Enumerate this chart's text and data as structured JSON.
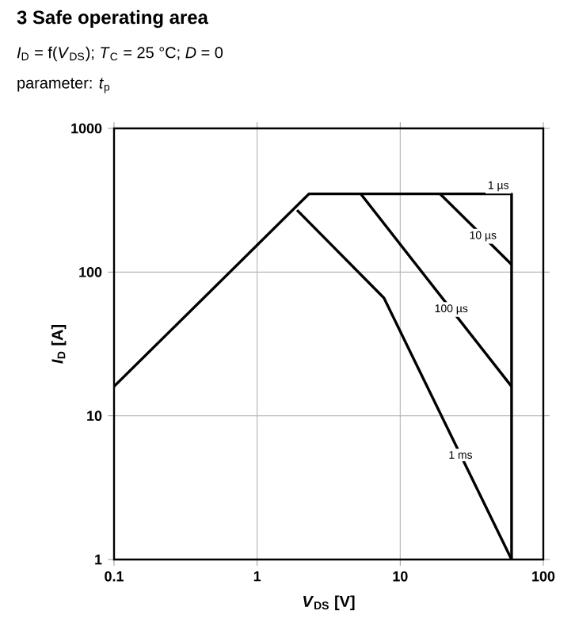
{
  "chart_data": {
    "type": "line",
    "title": "3 Safe operating area",
    "subtitle": "*I*$_{D}$ = f(*V*$_{DS}$); *T*$_{C}$ = 25 °C; *D* = 0",
    "annotations": [
      "parameter: *t*$_{p}$"
    ],
    "xlabel": "*V*$_{DS}$ [V]",
    "ylabel": "*I*$_{D}$ [A]",
    "log": "xy",
    "xlim": [
      0.1,
      100
    ],
    "ylim": [
      1,
      1000
    ],
    "xticks": [
      0.1,
      1,
      10,
      100
    ],
    "yticks": [
      1,
      10,
      100,
      1000
    ],
    "grid": true,
    "legend": false,
    "marker": "none",
    "line_style": "solid",
    "series": [
      {
        "name": "1 µs",
        "color": "#000000",
        "x": [
          0.1,
          2.3,
          60,
          60
        ],
        "values": [
          16,
          350,
          350,
          1
        ]
      },
      {
        "name": "10 µs",
        "color": "#000000",
        "x": [
          19,
          60
        ],
        "values": [
          350,
          113
        ]
      },
      {
        "name": "100 µs",
        "color": "#000000",
        "x": [
          5.3,
          60
        ],
        "values": [
          350,
          16
        ]
      },
      {
        "name": "1 ms",
        "color": "#000000",
        "x": [
          1.9,
          7.7,
          60
        ],
        "values": [
          270,
          66,
          1
        ]
      }
    ]
  }
}
